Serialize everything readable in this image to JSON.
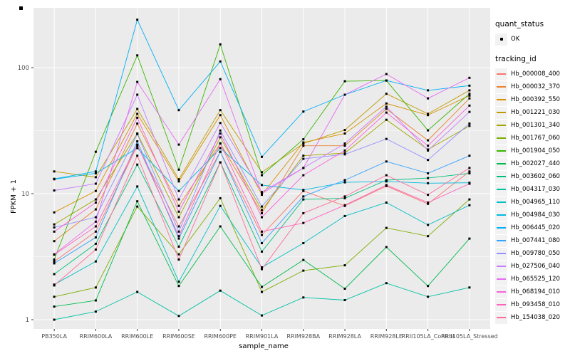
{
  "figure": {
    "y_axis_title": "FPKM + 1",
    "x_axis_title": "sample_name",
    "panel_bg": "#EBEBEB",
    "grid_color": "#FFFFFF",
    "tick_label_color": "#4D4D4D",
    "marker_color": "#000000",
    "y_tick_labels": [
      "1",
      "10",
      "100"
    ]
  },
  "legend": {
    "quant_status_title": "quant_status",
    "quant_status_items": [
      {
        "label": "OK",
        "marker": "black-point"
      }
    ],
    "tracking_id_title": "tracking_id"
  },
  "chart_data": {
    "type": "line",
    "title": "",
    "xlabel": "sample_name",
    "ylabel": "FPKM + 1",
    "y_scale": "log10",
    "ylim": [
      0.85,
      300
    ],
    "y_major_ticks": [
      1,
      10,
      100
    ],
    "y_minor_ticks": [
      3.1623,
      31.623
    ],
    "grid": true,
    "legend_position": "right",
    "point_marker": "black-square",
    "categories": [
      "PB350LA",
      "RRIM600LA",
      "RRIM600LE",
      "RRIM600SE",
      "RRIM600PE",
      "RRIM901LA",
      "RRIM928BA",
      "RRIM928LA",
      "RRIM928LE",
      "RRII105LA_Control",
      "RRII105LA_Stressed"
    ],
    "series": [
      {
        "name": "Hb_000008_400",
        "color": "#F8766D",
        "values": [
          2.9,
          5.0,
          24,
          5.5,
          21.5,
          4.7,
          10.5,
          8.0,
          11.5,
          8.3,
          15
        ]
      },
      {
        "name": "Hb_000032_370",
        "color": "#EA8331",
        "values": [
          4.2,
          7.5,
          36,
          8.0,
          25,
          7.0,
          24,
          24,
          47,
          26.5,
          57
        ]
      },
      {
        "name": "Hb_000392_550",
        "color": "#D89000",
        "values": [
          7.1,
          10.5,
          43,
          12.5,
          42,
          9.8,
          25.5,
          30,
          52,
          42,
          60
        ]
      },
      {
        "name": "Hb_001221_030",
        "color": "#C09B00",
        "values": [
          15,
          13.5,
          47,
          13,
          46,
          14.8,
          25,
          32,
          62,
          43,
          66
        ]
      },
      {
        "name": "Hb_001301_340",
        "color": "#A3A500",
        "values": [
          5.7,
          9.0,
          30,
          6.5,
          28,
          7.4,
          20,
          21,
          38.6,
          22.4,
          34.5
        ]
      },
      {
        "name": "Hb_001767_060",
        "color": "#7CAE00",
        "values": [
          1.52,
          1.8,
          7.9,
          3.3,
          9.2,
          1.66,
          2.45,
          2.7,
          5.35,
          4.6,
          9.0
        ]
      },
      {
        "name": "Hb_001904_050",
        "color": "#39B600",
        "values": [
          3.0,
          21.5,
          125,
          15.5,
          153,
          14.0,
          27,
          78,
          79,
          31.8,
          62
        ]
      },
      {
        "name": "Hb_002027_440",
        "color": "#00BB4E",
        "values": [
          1.27,
          1.42,
          8.7,
          1.85,
          5.5,
          1.82,
          2.98,
          1.76,
          3.77,
          1.85,
          4.4
        ]
      },
      {
        "name": "Hb_003602_060",
        "color": "#00BF7D",
        "values": [
          2.3,
          4.0,
          17,
          3.8,
          17.7,
          3.47,
          9.0,
          9.2,
          12.8,
          13.3,
          14.5
        ]
      },
      {
        "name": "Hb_004317_030",
        "color": "#00C1A3",
        "values": [
          1.0,
          1.16,
          1.66,
          1.07,
          1.7,
          1.08,
          1.5,
          1.43,
          1.95,
          1.52,
          1.8
        ]
      },
      {
        "name": "Hb_004965_110",
        "color": "#00BFC4",
        "values": [
          1.9,
          2.9,
          11.4,
          2.0,
          8.0,
          2.6,
          4.05,
          6.65,
          8.5,
          5.65,
          8.1
        ]
      },
      {
        "name": "Hb_004984_030",
        "color": "#00BAE0",
        "values": [
          13.0,
          14.5,
          23,
          10.5,
          23,
          11.7,
          10.7,
          12.3,
          12.5,
          12.1,
          12.2
        ]
      },
      {
        "name": "Hb_006445_020",
        "color": "#00B0F6",
        "values": [
          13.1,
          15.0,
          240,
          46,
          112,
          19.6,
          44.8,
          61,
          79,
          66,
          72
        ]
      },
      {
        "name": "Hb_007441_080",
        "color": "#35A2FF",
        "values": [
          2.8,
          4.5,
          26,
          4.4,
          21.5,
          4.05,
          9.5,
          12.8,
          18,
          14.5,
          20
        ]
      },
      {
        "name": "Hb_009780_050",
        "color": "#9590FF",
        "values": [
          5.4,
          6.5,
          29.7,
          5.0,
          31.7,
          7.9,
          18.9,
          20.5,
          27.2,
          18.5,
          36
        ]
      },
      {
        "name": "Hb_027506_040",
        "color": "#C77CFF",
        "values": [
          10.6,
          12.0,
          61,
          9.0,
          36.4,
          10.3,
          16.0,
          25,
          49,
          22,
          44.5
        ]
      },
      {
        "name": "Hb_065525_120",
        "color": "#E76BF3",
        "values": [
          3.3,
          6.0,
          77,
          24.5,
          81,
          10.0,
          16,
          61,
          89,
          57,
          83
        ]
      },
      {
        "name": "Hb_068194_010",
        "color": "#FA62DB",
        "values": [
          5.0,
          8.5,
          40,
          7.2,
          30,
          6.5,
          14,
          22,
          44,
          24,
          50
        ]
      },
      {
        "name": "Hb_093458_010",
        "color": "#FF62BC",
        "values": [
          3.28,
          5.5,
          24.5,
          4.6,
          25.1,
          5.0,
          5.85,
          8.1,
          11.7,
          8.5,
          12
        ]
      },
      {
        "name": "Hb_154038_020",
        "color": "#FF6A98",
        "values": [
          1.87,
          3.6,
          20,
          3.0,
          17.7,
          2.52,
          7.0,
          9.5,
          14,
          9.8,
          16
        ]
      }
    ]
  }
}
